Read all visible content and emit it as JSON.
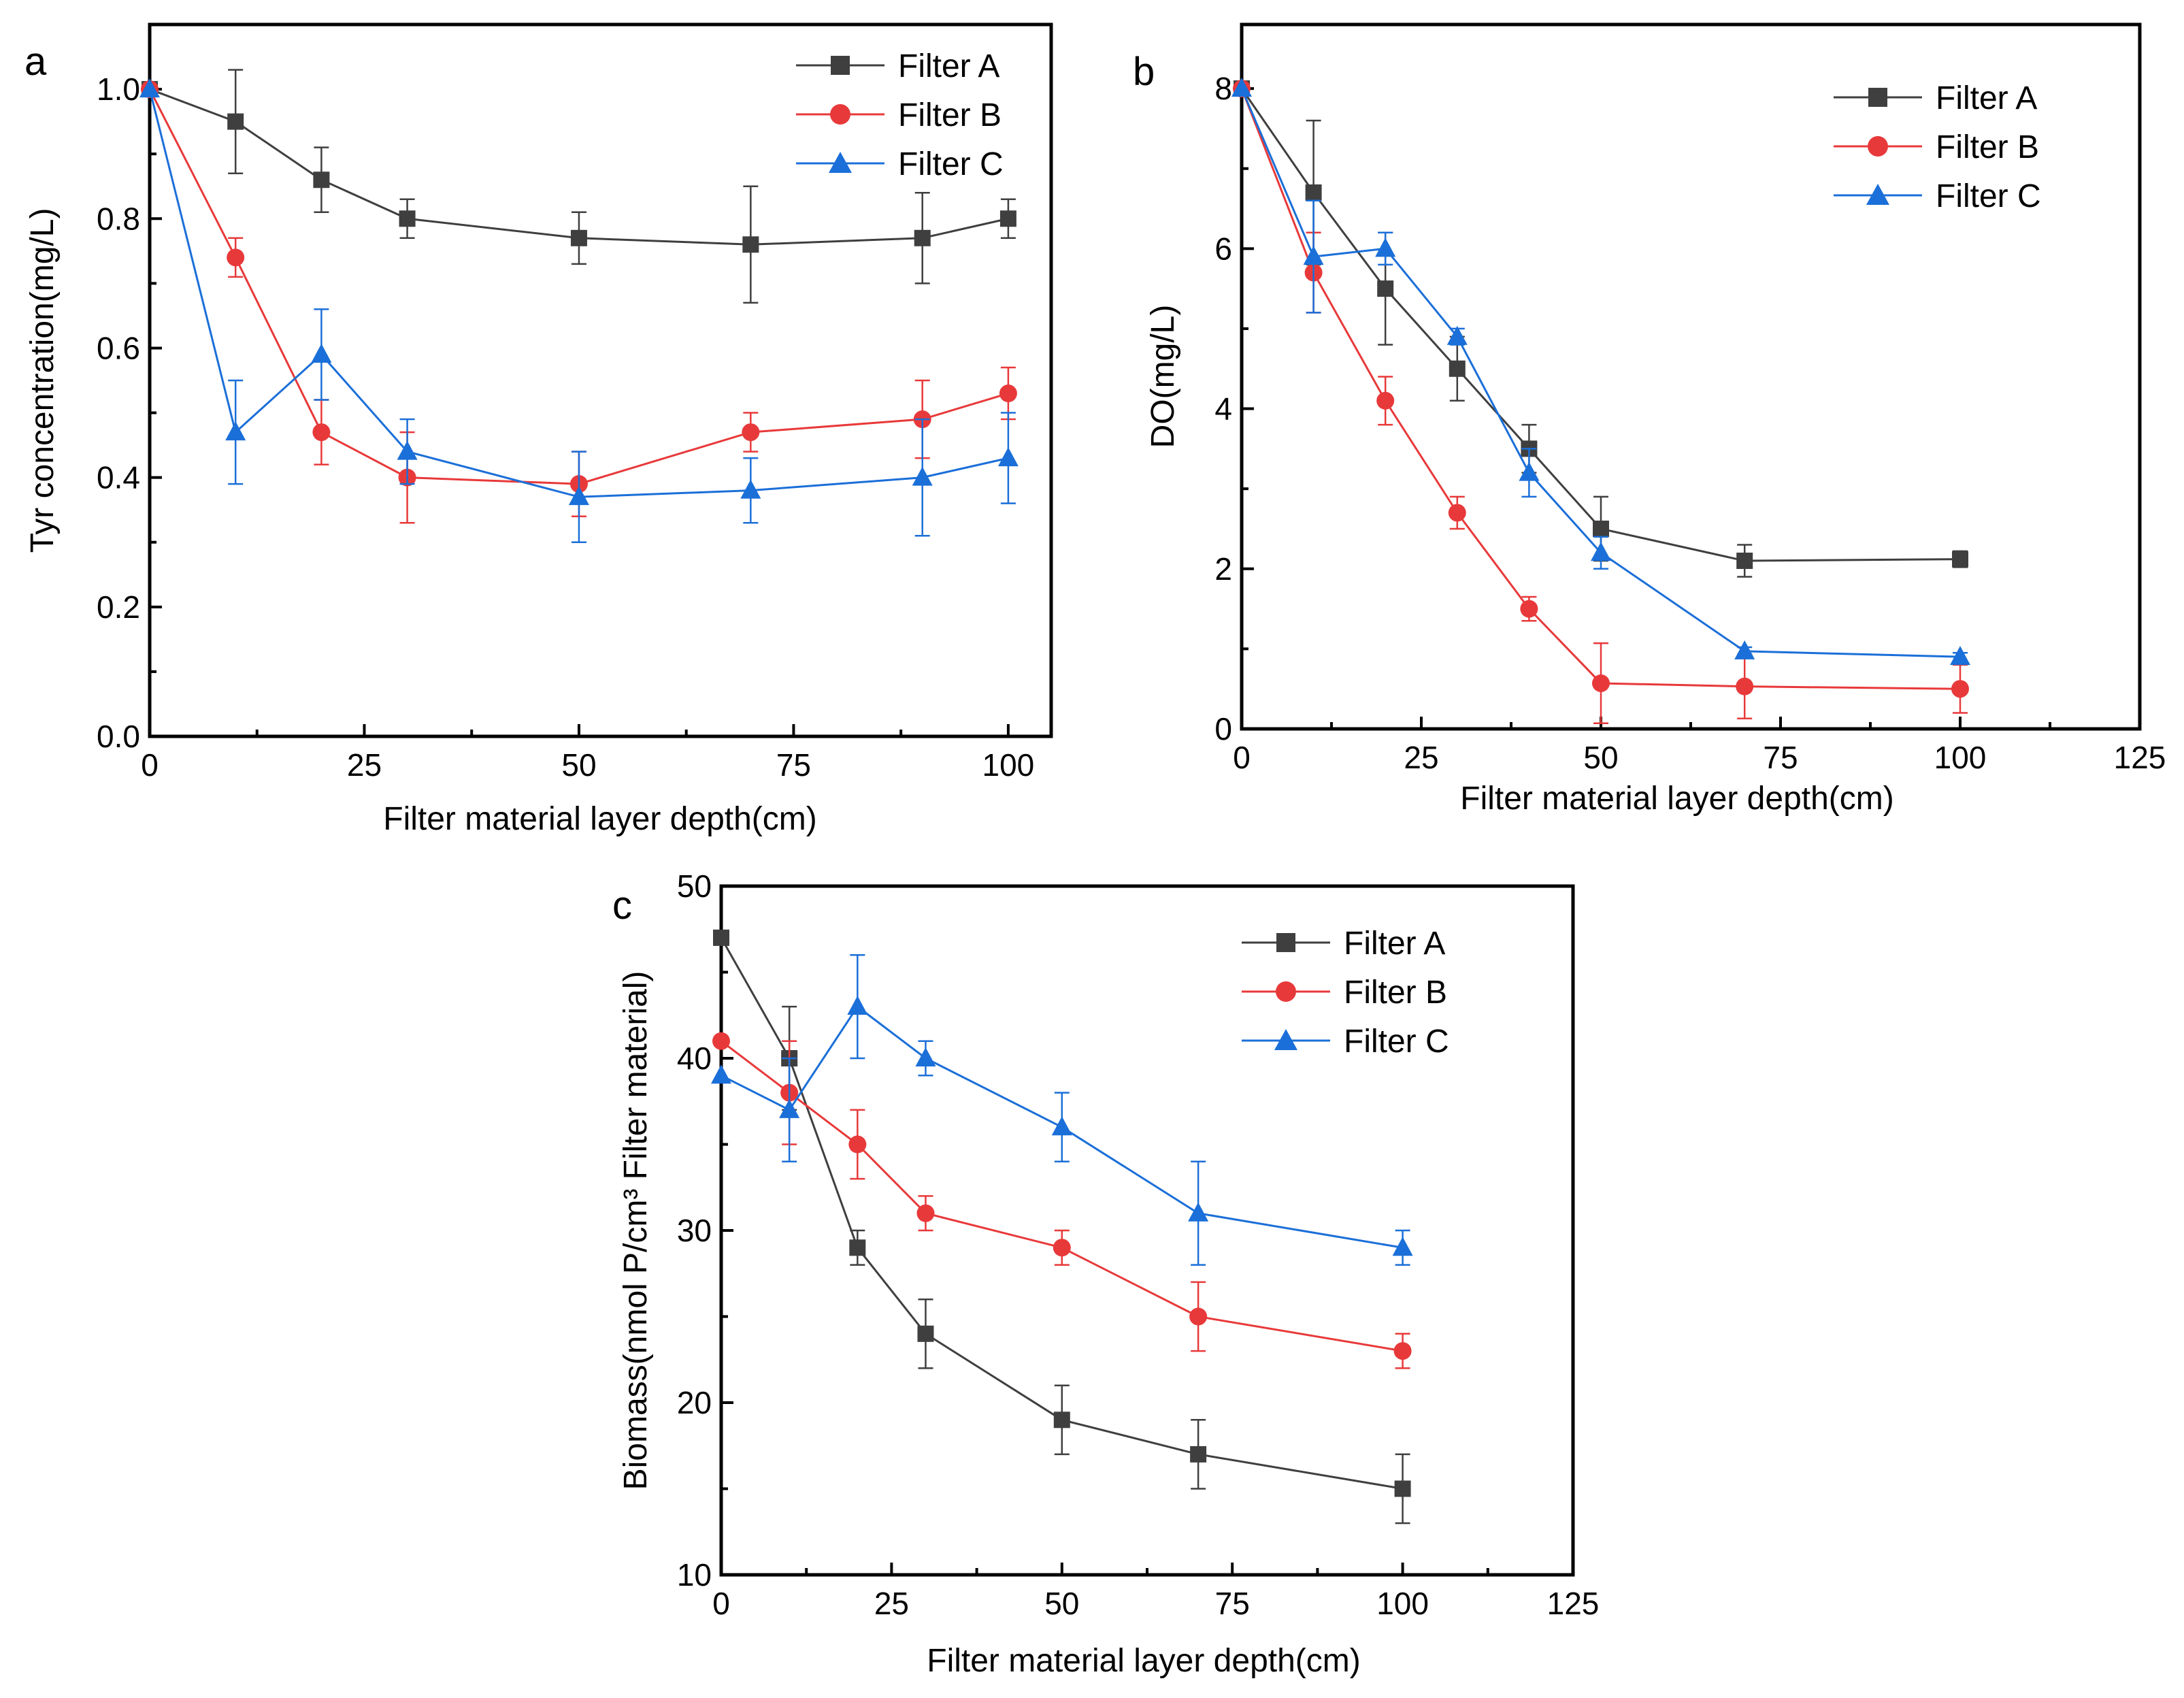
{
  "chart_data": [
    {
      "panel": "a",
      "type": "line",
      "xlabel": "Filter material layer depth(cm)",
      "ylabel": "Tyr concentration(mg/L)",
      "xlim": [
        0,
        105
      ],
      "ylim": [
        0.0,
        1.1
      ],
      "xticks": [
        0,
        25,
        50,
        75,
        100
      ],
      "xtick_labels": [
        "0",
        "25",
        "50",
        "75",
        "100"
      ],
      "yticks": [
        0.0,
        0.2,
        0.4,
        0.6,
        0.8,
        1.0
      ],
      "ytick_labels": [
        "0.0",
        "0.2",
        "0.4",
        "0.6",
        "0.8",
        "1.0"
      ],
      "legend_position": "top-right",
      "series": [
        {
          "name": "Filter A",
          "color": "#3f3f3f",
          "marker": "square",
          "x": [
            0,
            10,
            20,
            30,
            50,
            70,
            90,
            100
          ],
          "values": [
            1.0,
            0.95,
            0.86,
            0.8,
            0.77,
            0.76,
            0.77,
            0.8
          ],
          "error": [
            0,
            0.08,
            0.05,
            0.03,
            0.04,
            0.09,
            0.07,
            0.03
          ]
        },
        {
          "name": "Filter B",
          "color": "#e8393a",
          "marker": "circle",
          "x": [
            0,
            10,
            20,
            30,
            50,
            70,
            90,
            100
          ],
          "values": [
            1.0,
            0.74,
            0.47,
            0.4,
            0.39,
            0.47,
            0.49,
            0.53
          ],
          "error": [
            0,
            0.03,
            0.05,
            0.07,
            0.05,
            0.03,
            0.06,
            0.04
          ]
        },
        {
          "name": "Filter C",
          "color": "#1b6fd8",
          "marker": "triangle",
          "x": [
            0,
            10,
            20,
            30,
            50,
            70,
            90,
            100
          ],
          "values": [
            1.0,
            0.47,
            0.59,
            0.44,
            0.37,
            0.38,
            0.4,
            0.43
          ],
          "error": [
            0,
            0.08,
            0.07,
            0.05,
            0.07,
            0.05,
            0.09,
            0.07
          ]
        }
      ]
    },
    {
      "panel": "b",
      "type": "line",
      "xlabel": "Filter material layer depth(cm)",
      "ylabel": "DO(mg/L)",
      "xlim": [
        0,
        125
      ],
      "ylim": [
        0,
        8.8
      ],
      "xticks": [
        0,
        25,
        50,
        75,
        100,
        125
      ],
      "xtick_labels": [
        "0",
        "25",
        "50",
        "75",
        "100",
        "125"
      ],
      "yticks": [
        0,
        2,
        4,
        6,
        8
      ],
      "ytick_labels": [
        "0",
        "2",
        "4",
        "6",
        "8"
      ],
      "legend_position": "top-right",
      "series": [
        {
          "name": "Filter A",
          "color": "#3f3f3f",
          "marker": "square",
          "x": [
            0,
            10,
            20,
            30,
            40,
            50,
            70,
            100
          ],
          "values": [
            8.0,
            6.7,
            5.5,
            4.5,
            3.5,
            2.5,
            2.1,
            2.12
          ],
          "error": [
            0,
            0.9,
            0.7,
            0.4,
            0.3,
            0.4,
            0.2,
            0.1
          ]
        },
        {
          "name": "Filter B",
          "color": "#e8393a",
          "marker": "circle",
          "x": [
            0,
            10,
            20,
            30,
            40,
            50,
            70,
            100
          ],
          "values": [
            8.0,
            5.7,
            4.1,
            2.7,
            1.5,
            0.57,
            0.53,
            0.5
          ],
          "error": [
            0,
            0.5,
            0.3,
            0.2,
            0.15,
            0.5,
            0.4,
            0.3
          ]
        },
        {
          "name": "Filter C",
          "color": "#1b6fd8",
          "marker": "triangle",
          "x": [
            0,
            10,
            20,
            30,
            40,
            50,
            70,
            100
          ],
          "values": [
            8.0,
            5.9,
            6.0,
            4.9,
            3.2,
            2.2,
            0.97,
            0.9
          ],
          "error": [
            0,
            0.7,
            0.2,
            0.1,
            0.3,
            0.2,
            0.05,
            0.05
          ]
        }
      ]
    },
    {
      "panel": "c",
      "type": "line",
      "xlabel": "Filter material layer depth(cm)",
      "ylabel": "Biomass(nmol P/cm³ Filter material)",
      "xlim": [
        0,
        125
      ],
      "ylim": [
        10,
        50
      ],
      "xticks": [
        0,
        25,
        50,
        75,
        100,
        125
      ],
      "xtick_labels": [
        "0",
        "25",
        "50",
        "75",
        "100",
        "125"
      ],
      "yticks": [
        10,
        20,
        30,
        40,
        50
      ],
      "ytick_labels": [
        "10",
        "20",
        "30",
        "40",
        "50"
      ],
      "legend_position": "top-right",
      "series": [
        {
          "name": "Filter A",
          "color": "#3f3f3f",
          "marker": "square",
          "x": [
            0,
            10,
            20,
            30,
            50,
            70,
            100
          ],
          "values": [
            47,
            40,
            29,
            24,
            19,
            17,
            15
          ],
          "error": [
            0,
            3,
            1,
            2,
            2,
            2,
            2
          ]
        },
        {
          "name": "Filter B",
          "color": "#e8393a",
          "marker": "circle",
          "x": [
            0,
            10,
            20,
            30,
            50,
            70,
            100
          ],
          "values": [
            41,
            38,
            35,
            31,
            29,
            25,
            23
          ],
          "error": [
            0,
            3,
            2,
            1,
            1,
            2,
            1
          ]
        },
        {
          "name": "Filter C",
          "color": "#1b6fd8",
          "marker": "triangle",
          "x": [
            0,
            10,
            20,
            30,
            50,
            70,
            100
          ],
          "values": [
            39,
            37,
            43,
            40,
            36,
            31,
            29
          ],
          "error": [
            0,
            3,
            3,
            1,
            2,
            3,
            1
          ]
        }
      ]
    }
  ]
}
